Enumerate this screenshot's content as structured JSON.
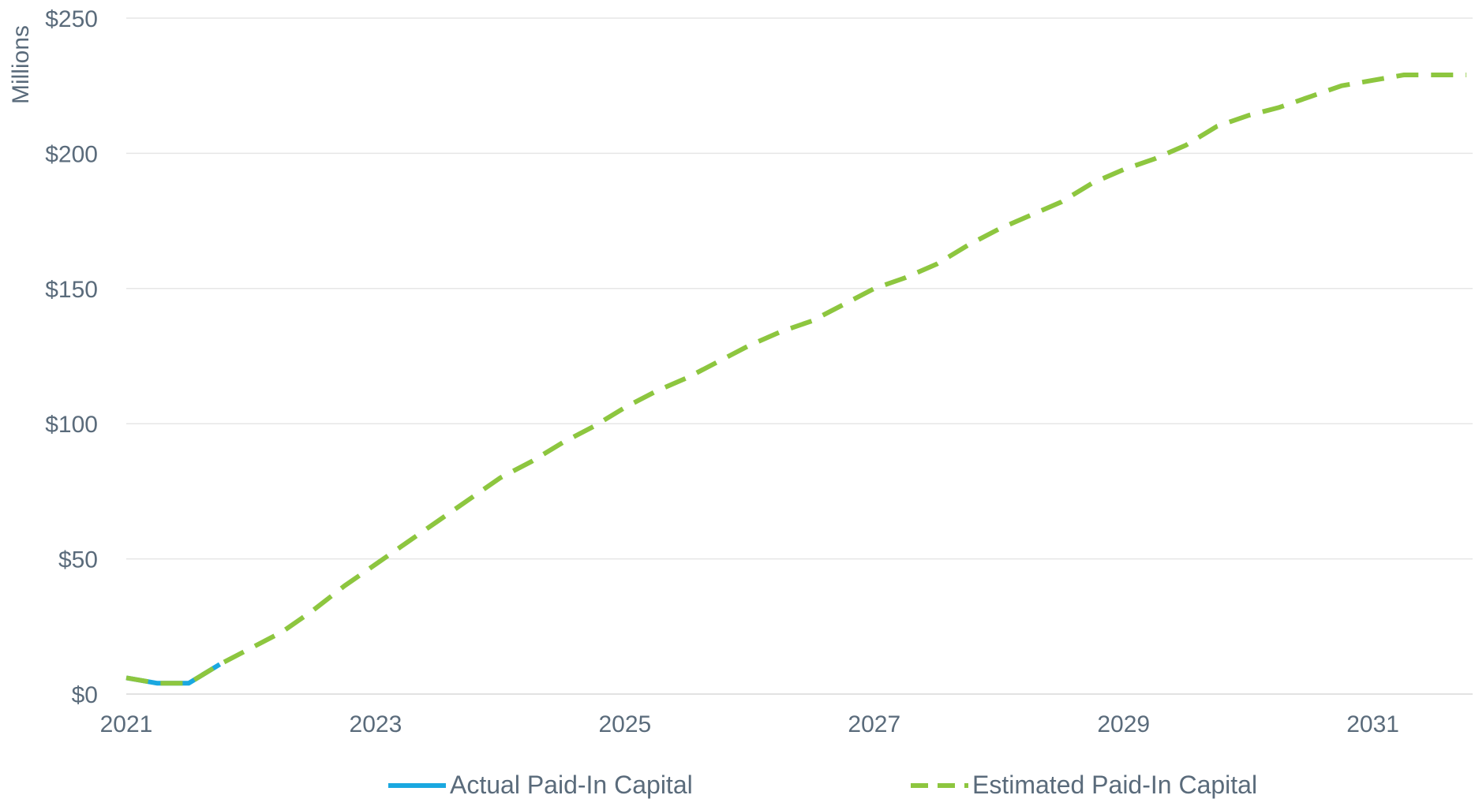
{
  "chart_data": {
    "type": "line",
    "title": "",
    "xlabel": "",
    "ylabel": "Millions",
    "ylim": [
      0,
      250
    ],
    "xlim": [
      2021.0,
      2031.8
    ],
    "yticks": [
      {
        "value": 0,
        "label": "$0"
      },
      {
        "value": 50,
        "label": "$50"
      },
      {
        "value": 100,
        "label": "$100"
      },
      {
        "value": 150,
        "label": "$150"
      },
      {
        "value": 200,
        "label": "$200"
      },
      {
        "value": 250,
        "label": "$250"
      }
    ],
    "xticks": [
      {
        "value": 2021,
        "label": "2021"
      },
      {
        "value": 2023,
        "label": "2023"
      },
      {
        "value": 2025,
        "label": "2025"
      },
      {
        "value": 2027,
        "label": "2027"
      },
      {
        "value": 2029,
        "label": "2029"
      },
      {
        "value": 2031,
        "label": "2031"
      }
    ],
    "grid": true,
    "legend_position": "bottom",
    "series": [
      {
        "name": "Actual Paid-In Capital",
        "color": "#1aa8e0",
        "style": "solid",
        "x": [
          2021.0,
          2021.25,
          2021.5,
          2021.75
        ],
        "y": [
          6,
          4,
          4,
          11
        ]
      },
      {
        "name": "Estimated Paid-In Capital",
        "color": "#8dc63f",
        "style": "dashed",
        "x": [
          2021.0,
          2021.25,
          2021.5,
          2021.75,
          2022.0,
          2022.25,
          2022.5,
          2022.75,
          2023.0,
          2023.25,
          2023.5,
          2023.75,
          2024.0,
          2024.25,
          2024.5,
          2024.75,
          2025.0,
          2025.25,
          2025.5,
          2025.75,
          2026.0,
          2026.25,
          2026.5,
          2026.75,
          2027.0,
          2027.25,
          2027.5,
          2027.75,
          2028.0,
          2028.25,
          2028.5,
          2028.75,
          2029.0,
          2029.25,
          2029.5,
          2029.75,
          2030.0,
          2030.25,
          2030.5,
          2030.75,
          2031.0,
          2031.25,
          2031.5,
          2031.75
        ],
        "y": [
          6,
          4,
          4,
          11,
          17,
          23,
          31,
          40,
          48,
          56,
          64,
          72,
          80,
          86,
          93,
          99,
          106,
          112,
          117,
          123,
          129,
          134,
          138,
          144,
          150,
          154,
          159,
          166,
          172,
          177,
          182,
          189,
          194,
          198,
          203,
          210,
          214,
          217,
          221,
          225,
          227,
          229,
          229,
          229
        ]
      }
    ]
  }
}
